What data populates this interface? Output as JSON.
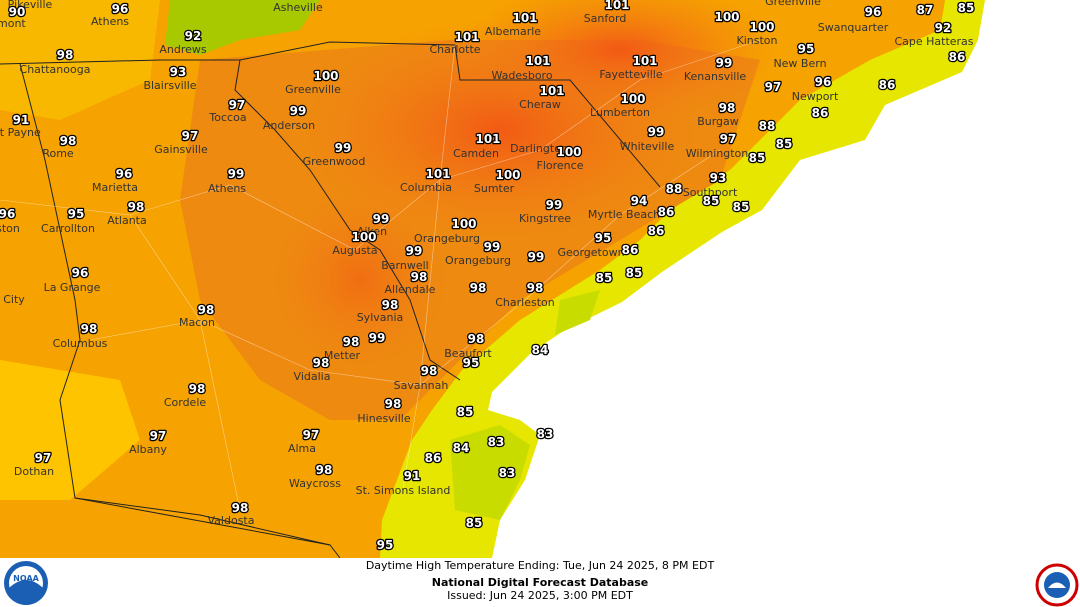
{
  "map": {
    "temps": [
      90,
      96,
      92,
      98,
      93,
      97,
      99,
      91,
      98,
      97,
      96,
      99,
      99,
      100,
      101,
      101,
      101,
      100,
      100,
      101,
      101,
      101,
      100,
      99,
      98,
      99,
      97,
      101,
      100,
      101,
      100,
      99,
      100,
      99,
      100,
      99,
      99,
      99,
      98,
      98,
      98,
      98,
      98,
      99,
      98,
      98,
      98,
      97,
      98,
      98,
      98,
      97,
      97,
      98,
      98,
      96,
      95,
      98,
      96,
      95,
      96,
      97,
      88,
      85,
      85,
      86,
      86,
      86,
      96,
      87,
      92,
      85,
      93,
      88,
      94,
      86,
      85,
      85,
      86,
      86,
      95,
      85,
      85,
      84,
      98,
      95,
      85,
      83,
      83,
      84,
      86,
      83,
      91,
      85,
      95
    ],
    "cities": [
      "Pikeville",
      "Athens",
      "Asheville",
      "Andrews",
      "Chattanooga",
      "Blairsville",
      "Toccoa",
      "Anderson",
      "Greenville",
      "rt Payne",
      "Rome",
      "Gainsville",
      "Greenwood",
      "Marietta",
      "Athens",
      "Atlanta",
      "Carrollton",
      "La Grange",
      "Macon",
      "Columbus",
      "Cordele",
      "Albany",
      "Dothan",
      "Alma",
      "Waycross",
      "Valdosta",
      "Vidalia",
      "Metter",
      "Sylvania",
      "Allendale",
      "Barnwell",
      "Augusta",
      "Aiken",
      "Orangeburg",
      "Orangeburg",
      "Columbia",
      "Sumter",
      "Camden",
      "Darlington",
      "Florence",
      "Kingstree",
      "Cheraw",
      "Wadesboro",
      "Albemarle",
      "Charlotte",
      "Sanford",
      "Fayetteville",
      "Lumberton",
      "Whiteville",
      "Kenansville",
      "Kinston",
      "Burgaw",
      "Wilmington",
      "Southport",
      "Myrtle Beach",
      "Georgetown",
      "Charleston",
      "Beaufort",
      "Savannah",
      "Hinesville",
      "St. Simons Island",
      "New Bern",
      "Newport",
      "Cape Hatteras",
      "Swanquarter",
      "Greenville",
      "amont",
      "ston",
      "r City"
    ],
    "footer": {
      "line1": "Daytime High Temperature Ending: Tue, Jun 24 2025, 8 PM EDT",
      "line2": "National Digital Forecast Database",
      "line3": "Issued: Jun 24 2025, 3:00 PM EDT"
    }
  }
}
